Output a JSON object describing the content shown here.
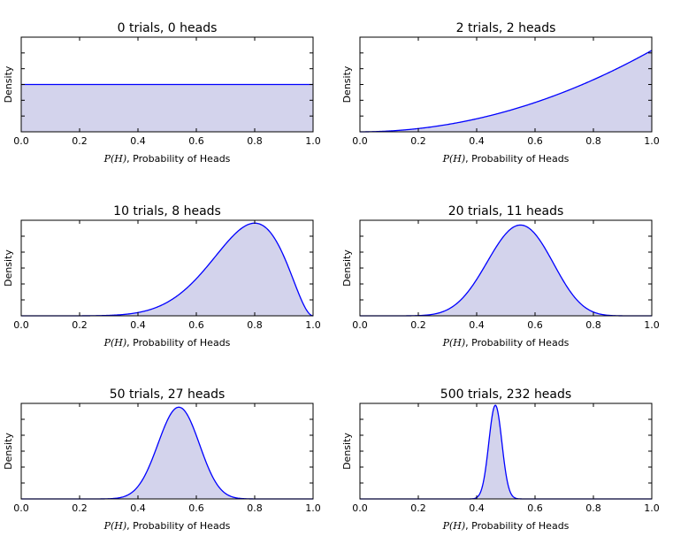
{
  "chart_data": [
    {
      "type": "area",
      "title": "0 trials, 0 heads",
      "trials": 0,
      "heads": 0,
      "xlabel_math": "P(H)",
      "xlabel_rest": ", Probability of Heads",
      "ylabel": "Density",
      "xlim": [
        0.0,
        1.0
      ],
      "xticks": [
        0.0,
        0.2,
        0.4,
        0.6,
        0.8,
        1.0
      ],
      "x_tick_labels": [
        "0.0",
        "0.2",
        "0.4",
        "0.6",
        "0.8",
        "1.0"
      ],
      "y_tick_labels": "hidden",
      "y_ticks_count": 5,
      "peak_fraction_of_axis": 0.5,
      "grid": false,
      "line_color": "#0000ff",
      "fill_color": "#d3d3ec"
    },
    {
      "type": "area",
      "title": "2 trials, 2 heads",
      "trials": 2,
      "heads": 2,
      "xlabel_math": "P(H)",
      "xlabel_rest": ", Probability of Heads",
      "ylabel": "Density",
      "xlim": [
        0.0,
        1.0
      ],
      "xticks": [
        0.0,
        0.2,
        0.4,
        0.6,
        0.8,
        1.0
      ],
      "x_tick_labels": [
        "0.0",
        "0.2",
        "0.4",
        "0.6",
        "0.8",
        "1.0"
      ],
      "y_tick_labels": "hidden",
      "y_ticks_count": 5,
      "peak_fraction_of_axis": 0.86,
      "grid": false,
      "line_color": "#0000ff",
      "fill_color": "#d3d3ec"
    },
    {
      "type": "area",
      "title": "10 trials, 8 heads",
      "trials": 10,
      "heads": 8,
      "xlabel_math": "P(H)",
      "xlabel_rest": ", Probability of Heads",
      "ylabel": "Density",
      "xlim": [
        0.0,
        1.0
      ],
      "xticks": [
        0.0,
        0.2,
        0.4,
        0.6,
        0.8,
        1.0
      ],
      "x_tick_labels": [
        "0.0",
        "0.2",
        "0.4",
        "0.6",
        "0.8",
        "1.0"
      ],
      "y_tick_labels": "hidden",
      "y_ticks_count": 5,
      "peak_fraction_of_axis": 0.97,
      "grid": false,
      "line_color": "#0000ff",
      "fill_color": "#d3d3ec"
    },
    {
      "type": "area",
      "title": "20 trials, 11 heads",
      "trials": 20,
      "heads": 11,
      "xlabel_math": "P(H)",
      "xlabel_rest": ", Probability of Heads",
      "ylabel": "Density",
      "xlim": [
        0.0,
        1.0
      ],
      "xticks": [
        0.0,
        0.2,
        0.4,
        0.6,
        0.8,
        1.0
      ],
      "x_tick_labels": [
        "0.0",
        "0.2",
        "0.4",
        "0.6",
        "0.8",
        "1.0"
      ],
      "y_tick_labels": "hidden",
      "y_ticks_count": 5,
      "peak_fraction_of_axis": 0.95,
      "grid": false,
      "line_color": "#0000ff",
      "fill_color": "#d3d3ec"
    },
    {
      "type": "area",
      "title": "50 trials, 27 heads",
      "trials": 50,
      "heads": 27,
      "xlabel_math": "P(H)",
      "xlabel_rest": ", Probability of Heads",
      "ylabel": "Density",
      "xlim": [
        0.0,
        1.0
      ],
      "xticks": [
        0.0,
        0.2,
        0.4,
        0.6,
        0.8,
        1.0
      ],
      "x_tick_labels": [
        "0.0",
        "0.2",
        "0.4",
        "0.6",
        "0.8",
        "1.0"
      ],
      "y_tick_labels": "hidden",
      "y_ticks_count": 5,
      "peak_fraction_of_axis": 0.96,
      "grid": false,
      "line_color": "#0000ff",
      "fill_color": "#d3d3ec"
    },
    {
      "type": "area",
      "title": "500 trials, 232 heads",
      "trials": 500,
      "heads": 232,
      "xlabel_math": "P(H)",
      "xlabel_rest": ", Probability of Heads",
      "ylabel": "Density",
      "xlim": [
        0.0,
        1.0
      ],
      "xticks": [
        0.0,
        0.2,
        0.4,
        0.6,
        0.8,
        1.0
      ],
      "x_tick_labels": [
        "0.0",
        "0.2",
        "0.4",
        "0.6",
        "0.8",
        "1.0"
      ],
      "y_tick_labels": "hidden",
      "y_ticks_count": 5,
      "peak_fraction_of_axis": 0.98,
      "grid": false,
      "line_color": "#0000ff",
      "fill_color": "#d3d3ec"
    }
  ]
}
